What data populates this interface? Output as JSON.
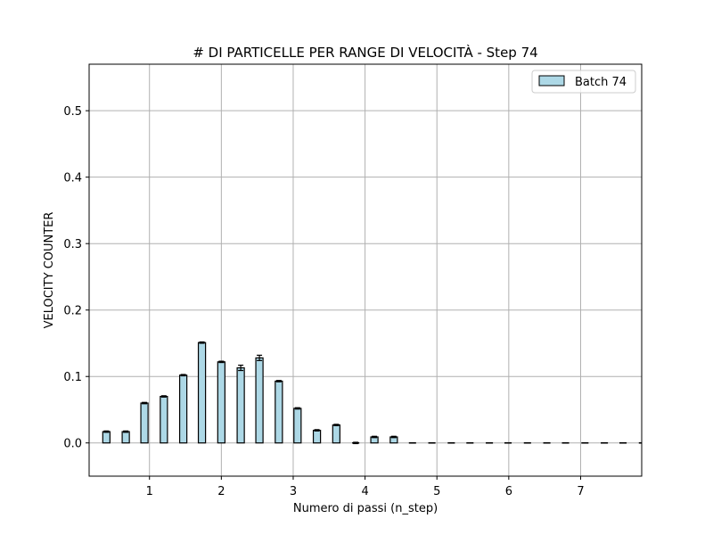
{
  "chart_data": {
    "type": "bar",
    "title": "# DI PARTICELLE PER RANGE DI VELOCITÀ - Step 74",
    "xlabel": "Numero di passi (n_step)",
    "ylabel": "VELOCITY COUNTER",
    "xlim": [
      0.16,
      7.85
    ],
    "ylim": [
      -0.05,
      0.57
    ],
    "xticks": [
      1,
      2,
      3,
      4,
      5,
      6,
      7
    ],
    "xtick_labels": [
      "1",
      "2",
      "3",
      "4",
      "5",
      "6",
      "7"
    ],
    "yticks": [
      0.0,
      0.1,
      0.2,
      0.3,
      0.4,
      0.5
    ],
    "ytick_labels": [
      "0.0",
      "0.1",
      "0.2",
      "0.3",
      "0.4",
      "0.5"
    ],
    "grid": true,
    "legend_position": "top-right",
    "bar_color": "#add8e6",
    "edge_color": "#000000",
    "series": [
      {
        "name": "Batch 74",
        "x": [
          0.4,
          0.67,
          0.93,
          1.2,
          1.47,
          1.73,
          2.0,
          2.27,
          2.53,
          2.8,
          3.06,
          3.33,
          3.6,
          3.87,
          4.13,
          4.4,
          4.66,
          4.93,
          5.2,
          5.46,
          5.73,
          5.99,
          6.26,
          6.53,
          6.79,
          7.06,
          7.33,
          7.59,
          7.86
        ],
        "values": [
          0.017,
          0.017,
          0.06,
          0.07,
          0.102,
          0.151,
          0.122,
          0.113,
          0.128,
          0.093,
          0.052,
          0.019,
          0.027,
          0.0,
          0.009,
          0.009,
          0.0,
          0.0,
          0.0,
          0.0,
          0.0,
          0.0,
          0.0,
          0.0,
          0.0,
          0.0,
          0.0,
          0.0,
          0.0
        ],
        "errors": [
          0.001,
          0.001,
          0.001,
          0.001,
          0.001,
          0.001,
          0.001,
          0.004,
          0.004,
          0.001,
          0.001,
          0.001,
          0.001,
          0.001,
          0.001,
          0.001,
          0.0,
          0.0,
          0.0,
          0.0,
          0.0,
          0.0,
          0.0,
          0.0,
          0.0,
          0.0,
          0.0,
          0.0,
          0.0
        ]
      }
    ],
    "bar_width": 0.1
  }
}
